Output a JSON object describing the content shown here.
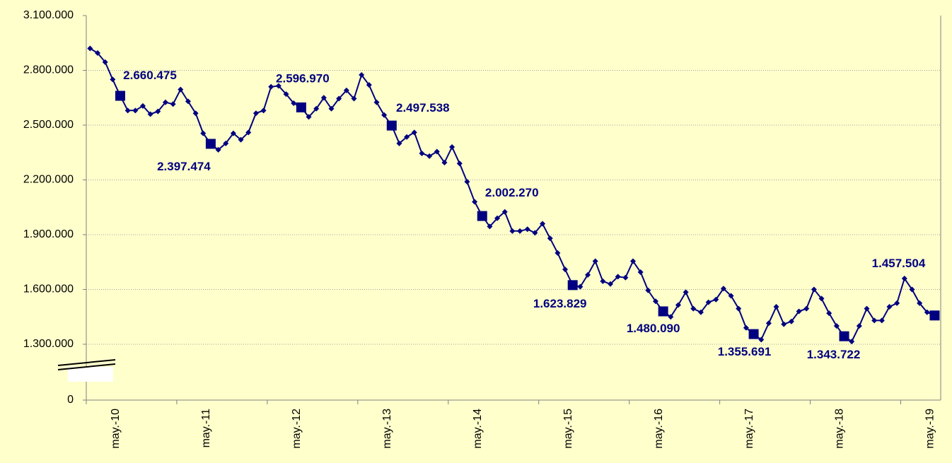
{
  "chart_data": {
    "type": "line",
    "categories": [
      null,
      null,
      null,
      null,
      "may.-10",
      null,
      null,
      null,
      null,
      null,
      null,
      null,
      null,
      null,
      null,
      null,
      "may.-11",
      null,
      null,
      null,
      null,
      null,
      null,
      null,
      null,
      null,
      null,
      null,
      "may.-12",
      null,
      null,
      null,
      null,
      null,
      null,
      null,
      null,
      null,
      null,
      null,
      "may.-13",
      null,
      null,
      null,
      null,
      null,
      null,
      null,
      null,
      null,
      null,
      null,
      "may.-14",
      null,
      null,
      null,
      null,
      null,
      null,
      null,
      null,
      null,
      null,
      null,
      "may.-15",
      null,
      null,
      null,
      null,
      null,
      null,
      null,
      null,
      null,
      null,
      null,
      "may.-16",
      null,
      null,
      null,
      null,
      null,
      null,
      null,
      null,
      null,
      null,
      null,
      "may.-17",
      null,
      null,
      null,
      null,
      null,
      null,
      null,
      null,
      null,
      null,
      null,
      "may.-18",
      null,
      null,
      null,
      null,
      null,
      null,
      null,
      null,
      null,
      null,
      null,
      "may.-19"
    ],
    "values": [
      2920000,
      2895000,
      2845000,
      2750000,
      2660475,
      2580000,
      2580000,
      2605000,
      2560000,
      2575000,
      2625000,
      2615000,
      2695000,
      2630000,
      2565000,
      2455000,
      2397474,
      2365000,
      2400000,
      2455000,
      2420000,
      2460000,
      2565000,
      2580000,
      2710000,
      2715000,
      2670000,
      2620000,
      2596970,
      2545000,
      2590000,
      2650000,
      2590000,
      2645000,
      2690000,
      2645000,
      2775000,
      2720000,
      2625000,
      2555000,
      2497538,
      2400000,
      2435000,
      2460000,
      2345000,
      2330000,
      2355000,
      2295000,
      2380000,
      2290000,
      2190000,
      2080000,
      2002270,
      1945000,
      1990000,
      2025000,
      1920000,
      1920000,
      1930000,
      1910000,
      1960000,
      1880000,
      1800000,
      1710000,
      1623829,
      1615000,
      1680000,
      1755000,
      1645000,
      1630000,
      1670000,
      1665000,
      1755000,
      1695000,
      1595000,
      1535000,
      1480090,
      1450000,
      1515000,
      1585000,
      1495000,
      1475000,
      1530000,
      1545000,
      1605000,
      1565000,
      1495000,
      1390000,
      1355691,
      1325000,
      1415000,
      1505000,
      1410000,
      1425000,
      1480000,
      1495000,
      1600000,
      1550000,
      1470000,
      1400000,
      1343722,
      1315000,
      1400000,
      1495000,
      1430000,
      1430000,
      1505000,
      1525000,
      1660000,
      1600000,
      1525000,
      1475000,
      1457504
    ],
    "value_labels": [
      null,
      null,
      null,
      null,
      "2.660.475",
      null,
      null,
      null,
      null,
      null,
      null,
      null,
      null,
      null,
      null,
      null,
      "2.397.474",
      null,
      null,
      null,
      null,
      null,
      null,
      null,
      null,
      null,
      null,
      null,
      "2.596.970",
      null,
      null,
      null,
      null,
      null,
      null,
      null,
      null,
      null,
      null,
      null,
      "2.497.538",
      null,
      null,
      null,
      null,
      null,
      null,
      null,
      null,
      null,
      null,
      null,
      "2.002.270",
      null,
      null,
      null,
      null,
      null,
      null,
      null,
      null,
      null,
      null,
      null,
      "1.623.829",
      null,
      null,
      null,
      null,
      null,
      null,
      null,
      null,
      null,
      null,
      null,
      "1.480.090",
      null,
      null,
      null,
      null,
      null,
      null,
      null,
      null,
      null,
      null,
      null,
      "1.355.691",
      null,
      null,
      null,
      null,
      null,
      null,
      null,
      null,
      null,
      null,
      null,
      "1.343.722",
      null,
      null,
      null,
      null,
      null,
      null,
      null,
      null,
      null,
      null,
      null,
      "1.457.504"
    ],
    "color": "#000080",
    "ylim": [
      0,
      3100000
    ],
    "y_break": [
      0,
      1300000
    ],
    "yticks": [
      {
        "value": 0,
        "label": "0"
      },
      {
        "value": 1300000,
        "label": "1.300.000"
      },
      {
        "value": 1600000,
        "label": "1.600.000"
      },
      {
        "value": 1900000,
        "label": "1.900.000"
      },
      {
        "value": 2200000,
        "label": "2.200.000"
      },
      {
        "value": 2500000,
        "label": "2.500.000"
      },
      {
        "value": 2800000,
        "label": "2.800.000"
      },
      {
        "value": 3100000,
        "label": "3.100.000"
      }
    ],
    "grid": true
  }
}
